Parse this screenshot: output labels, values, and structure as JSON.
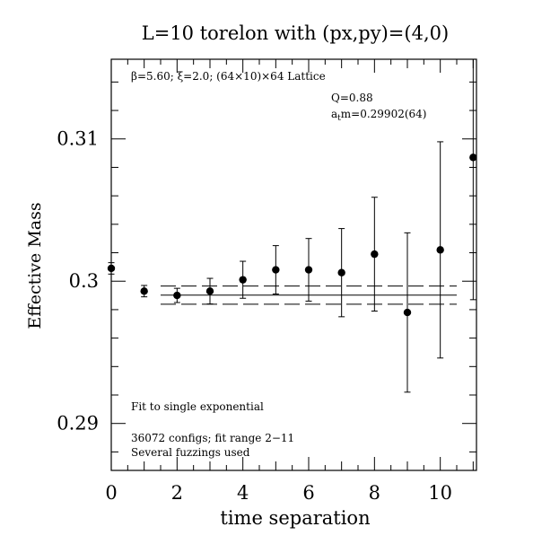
{
  "chart_data": {
    "type": "scatter",
    "title": "L=10 torelon with (px,py)=(4,0)",
    "xlabel": "time separation",
    "ylabel": "Effective Mass",
    "xlim": [
      0,
      11.1
    ],
    "ylim": [
      0.2867,
      0.3156
    ],
    "x_ticks": [
      "0",
      "2",
      "4",
      "6",
      "8",
      "10"
    ],
    "y_ticks": [
      "0.29",
      "0.3",
      "0.31"
    ],
    "grid": false,
    "annotations": {
      "lattice": "β=5.60; ξ=2.0; (64×10)×64 Lattice",
      "q_value": "Q=0.88",
      "mass_value": "a",
      "mass_sub": "t",
      "mass_rest": "m=0.29902(64)",
      "fit_type": "Fit to single exponential",
      "configs": "36072 configs; fit range 2−11",
      "fuzzing": "Several fuzzings used"
    },
    "series": [
      {
        "points": [
          {
            "x": 0,
            "y": 0.3009,
            "err": 0.0004
          },
          {
            "x": 1,
            "y": 0.2993,
            "err": 0.0004
          },
          {
            "x": 2,
            "y": 0.299,
            "err": 0.0005
          },
          {
            "x": 3,
            "y": 0.2993,
            "err": 0.0009
          },
          {
            "x": 4,
            "y": 0.3001,
            "err": 0.0013
          },
          {
            "x": 5,
            "y": 0.3008,
            "err": 0.0017
          },
          {
            "x": 6,
            "y": 0.3008,
            "err": 0.0022
          },
          {
            "x": 7,
            "y": 0.3006,
            "err": 0.0031
          },
          {
            "x": 8,
            "y": 0.3019,
            "err": 0.004
          },
          {
            "x": 9,
            "y": 0.2978,
            "err": 0.0056
          },
          {
            "x": 10,
            "y": 0.3022,
            "err": 0.0076
          },
          {
            "x": 11,
            "y": 0.3087,
            "err": 0.01
          }
        ]
      }
    ],
    "fit": {
      "x_range": [
        1.5,
        10.5
      ],
      "value": 0.29902,
      "error": 0.00064
    }
  }
}
